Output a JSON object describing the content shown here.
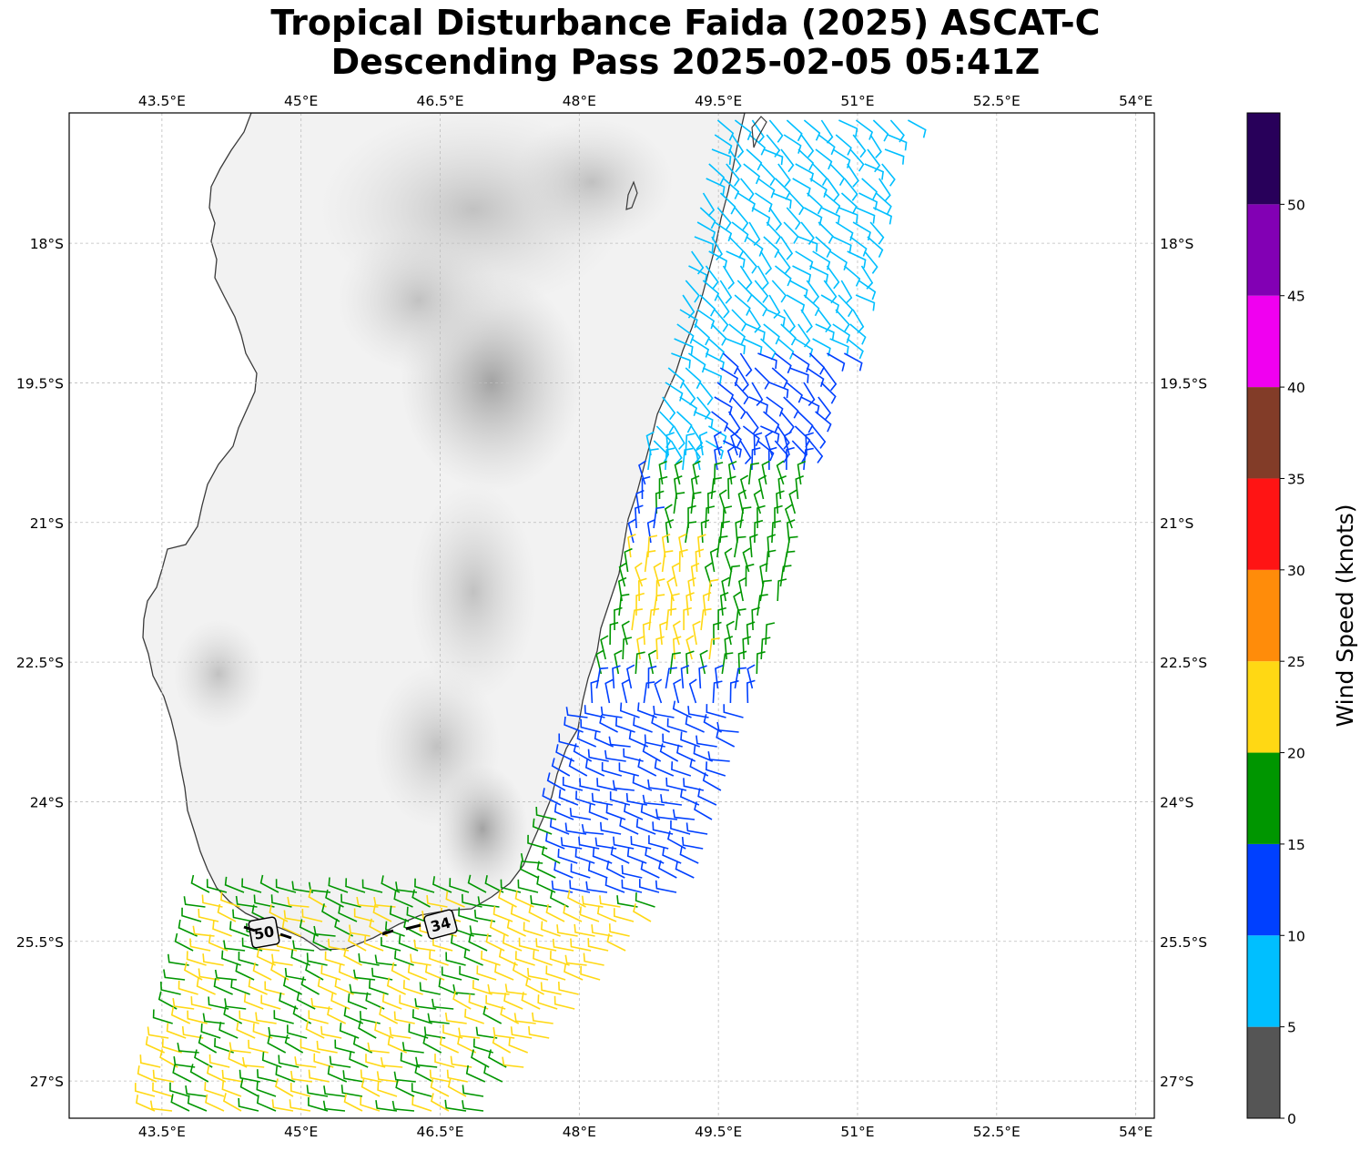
{
  "title": {
    "line1": "Tropical Disturbance Faida (2025) ASCAT-C",
    "line2": "Descending Pass 2025-02-05 05:41Z"
  },
  "map": {
    "lon_range": [
      42.5,
      54.2
    ],
    "lat_range": [
      -27.4,
      -16.6
    ],
    "lon_ticks": [
      {
        "value": 43.5,
        "label": "43.5°E"
      },
      {
        "value": 45.0,
        "label": "45°E"
      },
      {
        "value": 46.5,
        "label": "46.5°E"
      },
      {
        "value": 48.0,
        "label": "48°E"
      },
      {
        "value": 49.5,
        "label": "49.5°E"
      },
      {
        "value": 51.0,
        "label": "51°E"
      },
      {
        "value": 52.5,
        "label": "52.5°E"
      },
      {
        "value": 54.0,
        "label": "54°E"
      }
    ],
    "lat_ticks": [
      {
        "value": -18.0,
        "label": "18°S"
      },
      {
        "value": -19.5,
        "label": "19.5°S"
      },
      {
        "value": -21.0,
        "label": "21°S"
      },
      {
        "value": -22.5,
        "label": "22.5°S"
      },
      {
        "value": -24.0,
        "label": "24°S"
      },
      {
        "value": -25.5,
        "label": "25.5°S"
      },
      {
        "value": -27.0,
        "label": "27°S"
      }
    ],
    "gridlines": "dashed",
    "landmass": "Madagascar",
    "terrain_shading": "grayscale",
    "coastline_color": "#3a3a3a",
    "contour_labels": [
      {
        "text": "50",
        "lon": 44.05,
        "lat": -25.45
      },
      {
        "text": "34",
        "lon": 45.95,
        "lat": -25.3
      }
    ]
  },
  "colorbar": {
    "label": "Wind Speed (knots)",
    "bins": [
      {
        "from": 0,
        "to": 5,
        "color": "#555555"
      },
      {
        "from": 5,
        "to": 10,
        "color": "#00bfff"
      },
      {
        "from": 10,
        "to": 15,
        "color": "#0040ff"
      },
      {
        "from": 15,
        "to": 20,
        "color": "#009600"
      },
      {
        "from": 20,
        "to": 25,
        "color": "#ffd814"
      },
      {
        "from": 25,
        "to": 30,
        "color": "#ff8c0a"
      },
      {
        "from": 30,
        "to": 35,
        "color": "#ff1414"
      },
      {
        "from": 35,
        "to": 40,
        "color": "#823c28"
      },
      {
        "from": 40,
        "to": 45,
        "color": "#f000f0"
      },
      {
        "from": 45,
        "to": 50,
        "color": "#8200b4"
      },
      {
        "from": 50,
        "to": 55,
        "color": "#28005a"
      }
    ],
    "ticks": [
      0,
      5,
      10,
      15,
      20,
      25,
      30,
      35,
      40,
      45,
      50
    ]
  },
  "wind_field": {
    "description_regions": [
      {
        "name": "north-east swath",
        "speed_kt": 8
      },
      {
        "name": "central east swath",
        "speed_kt": 13
      },
      {
        "name": "mid east swath",
        "speed_kt": 17
      },
      {
        "name": "south swath",
        "speed_kt": 21
      }
    ]
  }
}
